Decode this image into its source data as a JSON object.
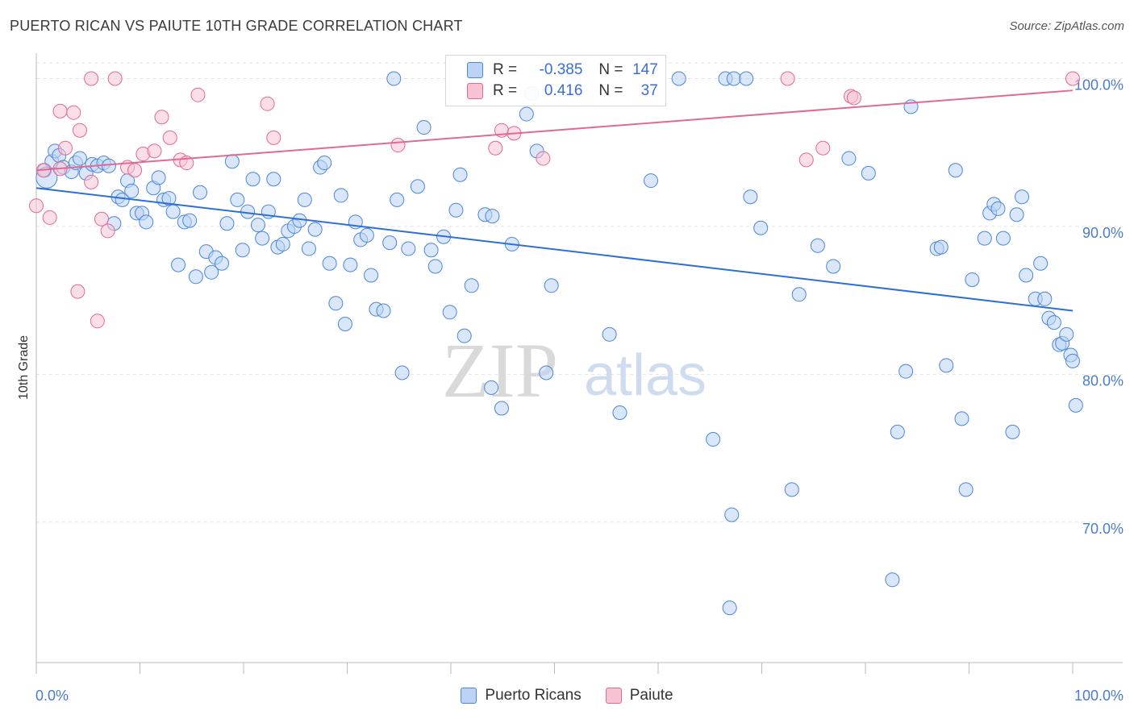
{
  "title": "PUERTO RICAN VS PAIUTE 10TH GRADE CORRELATION CHART",
  "source": "Source: ZipAtlas.com",
  "watermark": {
    "zip": "ZIP",
    "atlas": "atlas"
  },
  "legend_box": {
    "rows": [
      {
        "r_label": "R =",
        "r_value": "-0.385",
        "n_label": "N =",
        "n_value": "147"
      },
      {
        "r_label": "R =",
        "r_value": "0.416",
        "n_label": "N =",
        "n_value": "37"
      }
    ]
  },
  "bottom_legend": [
    "Puerto Ricans",
    "Paiute"
  ],
  "colors": {
    "blue": "#4a86d8",
    "blue_fill": "#bcd3f5",
    "pink": "#e06a94",
    "pink_fill": "#f7c3d3",
    "axis_text": "#4a7cc9"
  },
  "chart_data": {
    "type": "scatter",
    "title": "PUERTO RICAN VS PAIUTE 10TH GRADE CORRELATION CHART",
    "xlabel": "",
    "ylabel": "10th Grade",
    "xlim": [
      0,
      100
    ],
    "ylim": [
      60.5,
      101.5
    ],
    "x_tick_labels": [
      "0.0%",
      "100.0%"
    ],
    "y_ticks": [
      100,
      90,
      80,
      70
    ],
    "y_tick_labels": [
      "100.0%",
      "90.0%",
      "80.0%",
      "70.0%"
    ],
    "grid": true,
    "legend_position": "top-center",
    "series": [
      {
        "name": "Puerto Ricans",
        "r": -0.385,
        "n": 147,
        "trend": {
          "x": [
            0,
            100
          ],
          "y": [
            92.6,
            84.3
          ]
        },
        "points": [
          {
            "x": 0.8,
            "y": 93.8
          },
          {
            "x": 1.0,
            "y": 93.3
          },
          {
            "x": 1.5,
            "y": 94.4
          },
          {
            "x": 1.8,
            "y": 95.1
          },
          {
            "x": 2.2,
            "y": 94.8
          },
          {
            "x": 2.6,
            "y": 94.0
          },
          {
            "x": 3.4,
            "y": 93.7
          },
          {
            "x": 3.8,
            "y": 94.3
          },
          {
            "x": 4.2,
            "y": 94.6
          },
          {
            "x": 4.8,
            "y": 93.6
          },
          {
            "x": 5.4,
            "y": 94.2
          },
          {
            "x": 5.9,
            "y": 94.1
          },
          {
            "x": 6.5,
            "y": 94.3
          },
          {
            "x": 7.0,
            "y": 94.1
          },
          {
            "x": 7.5,
            "y": 90.2
          },
          {
            "x": 7.9,
            "y": 92.0
          },
          {
            "x": 8.3,
            "y": 91.8
          },
          {
            "x": 8.8,
            "y": 93.1
          },
          {
            "x": 9.2,
            "y": 92.4
          },
          {
            "x": 9.7,
            "y": 90.9
          },
          {
            "x": 10.2,
            "y": 90.9
          },
          {
            "x": 10.6,
            "y": 90.3
          },
          {
            "x": 11.3,
            "y": 92.6
          },
          {
            "x": 11.8,
            "y": 93.3
          },
          {
            "x": 12.3,
            "y": 91.8
          },
          {
            "x": 12.8,
            "y": 91.9
          },
          {
            "x": 13.2,
            "y": 91.0
          },
          {
            "x": 13.7,
            "y": 87.4
          },
          {
            "x": 14.3,
            "y": 90.3
          },
          {
            "x": 14.8,
            "y": 90.4
          },
          {
            "x": 15.4,
            "y": 86.6
          },
          {
            "x": 15.8,
            "y": 92.3
          },
          {
            "x": 16.4,
            "y": 88.3
          },
          {
            "x": 16.9,
            "y": 86.9
          },
          {
            "x": 17.3,
            "y": 87.9
          },
          {
            "x": 17.9,
            "y": 87.5
          },
          {
            "x": 18.4,
            "y": 90.2
          },
          {
            "x": 18.9,
            "y": 94.4
          },
          {
            "x": 19.4,
            "y": 91.8
          },
          {
            "x": 19.9,
            "y": 88.4
          },
          {
            "x": 20.4,
            "y": 91.0
          },
          {
            "x": 20.9,
            "y": 93.2
          },
          {
            "x": 21.4,
            "y": 90.1
          },
          {
            "x": 21.8,
            "y": 89.2
          },
          {
            "x": 22.4,
            "y": 91.0
          },
          {
            "x": 22.9,
            "y": 93.2
          },
          {
            "x": 23.3,
            "y": 88.6
          },
          {
            "x": 23.8,
            "y": 88.8
          },
          {
            "x": 24.3,
            "y": 89.7
          },
          {
            "x": 24.9,
            "y": 90.0
          },
          {
            "x": 25.4,
            "y": 90.4
          },
          {
            "x": 25.9,
            "y": 91.8
          },
          {
            "x": 26.3,
            "y": 88.5
          },
          {
            "x": 26.9,
            "y": 89.8
          },
          {
            "x": 27.4,
            "y": 94.0
          },
          {
            "x": 27.8,
            "y": 94.3
          },
          {
            "x": 28.3,
            "y": 87.5
          },
          {
            "x": 28.9,
            "y": 84.8
          },
          {
            "x": 29.4,
            "y": 92.1
          },
          {
            "x": 29.8,
            "y": 83.4
          },
          {
            "x": 30.3,
            "y": 87.4
          },
          {
            "x": 30.8,
            "y": 90.3
          },
          {
            "x": 31.3,
            "y": 89.1
          },
          {
            "x": 31.9,
            "y": 89.4
          },
          {
            "x": 32.3,
            "y": 86.7
          },
          {
            "x": 32.8,
            "y": 84.4
          },
          {
            "x": 33.5,
            "y": 84.3
          },
          {
            "x": 34.1,
            "y": 88.9
          },
          {
            "x": 34.5,
            "y": 100.0
          },
          {
            "x": 34.8,
            "y": 91.8
          },
          {
            "x": 35.3,
            "y": 80.1
          },
          {
            "x": 35.9,
            "y": 88.5
          },
          {
            "x": 36.8,
            "y": 92.7
          },
          {
            "x": 37.4,
            "y": 96.7
          },
          {
            "x": 38.1,
            "y": 88.4
          },
          {
            "x": 38.5,
            "y": 87.3
          },
          {
            "x": 39.3,
            "y": 89.3
          },
          {
            "x": 39.9,
            "y": 84.2
          },
          {
            "x": 40.5,
            "y": 91.1
          },
          {
            "x": 40.9,
            "y": 93.5
          },
          {
            "x": 41.3,
            "y": 82.6
          },
          {
            "x": 42.0,
            "y": 86.0
          },
          {
            "x": 43.3,
            "y": 90.8
          },
          {
            "x": 43.9,
            "y": 79.1
          },
          {
            "x": 44.0,
            "y": 90.7
          },
          {
            "x": 44.9,
            "y": 77.7
          },
          {
            "x": 45.9,
            "y": 88.8
          },
          {
            "x": 47.3,
            "y": 97.6
          },
          {
            "x": 47.8,
            "y": 99.0
          },
          {
            "x": 48.3,
            "y": 95.1
          },
          {
            "x": 49.2,
            "y": 80.1
          },
          {
            "x": 49.7,
            "y": 86.0
          },
          {
            "x": 51.8,
            "y": 100.0
          },
          {
            "x": 55.3,
            "y": 82.7
          },
          {
            "x": 56.3,
            "y": 77.4
          },
          {
            "x": 59.3,
            "y": 93.1
          },
          {
            "x": 62.0,
            "y": 100.0
          },
          {
            "x": 65.3,
            "y": 75.6
          },
          {
            "x": 66.5,
            "y": 100.0
          },
          {
            "x": 66.9,
            "y": 64.2
          },
          {
            "x": 67.1,
            "y": 70.5
          },
          {
            "x": 67.3,
            "y": 100.0
          },
          {
            "x": 68.5,
            "y": 100.0
          },
          {
            "x": 68.9,
            "y": 92.0
          },
          {
            "x": 69.9,
            "y": 89.9
          },
          {
            "x": 72.9,
            "y": 72.2
          },
          {
            "x": 73.6,
            "y": 85.4
          },
          {
            "x": 75.4,
            "y": 88.7
          },
          {
            "x": 76.9,
            "y": 87.3
          },
          {
            "x": 78.4,
            "y": 94.6
          },
          {
            "x": 80.3,
            "y": 93.6
          },
          {
            "x": 82.6,
            "y": 66.1
          },
          {
            "x": 83.1,
            "y": 76.1
          },
          {
            "x": 83.9,
            "y": 80.2
          },
          {
            "x": 84.4,
            "y": 98.1
          },
          {
            "x": 86.9,
            "y": 88.5
          },
          {
            "x": 87.3,
            "y": 88.6
          },
          {
            "x": 87.8,
            "y": 80.6
          },
          {
            "x": 88.7,
            "y": 93.8
          },
          {
            "x": 89.3,
            "y": 77.0
          },
          {
            "x": 89.7,
            "y": 72.2
          },
          {
            "x": 90.3,
            "y": 86.4
          },
          {
            "x": 91.5,
            "y": 89.2
          },
          {
            "x": 92.0,
            "y": 90.9
          },
          {
            "x": 92.4,
            "y": 91.5
          },
          {
            "x": 92.8,
            "y": 91.2
          },
          {
            "x": 93.3,
            "y": 89.2
          },
          {
            "x": 94.2,
            "y": 76.1
          },
          {
            "x": 94.6,
            "y": 90.8
          },
          {
            "x": 95.1,
            "y": 92.0
          },
          {
            "x": 95.5,
            "y": 86.7
          },
          {
            "x": 96.4,
            "y": 85.1
          },
          {
            "x": 96.9,
            "y": 87.5
          },
          {
            "x": 97.3,
            "y": 85.1
          },
          {
            "x": 97.7,
            "y": 83.8
          },
          {
            "x": 98.2,
            "y": 83.5
          },
          {
            "x": 98.7,
            "y": 82.0
          },
          {
            "x": 99.0,
            "y": 82.1
          },
          {
            "x": 99.4,
            "y": 82.7
          },
          {
            "x": 99.8,
            "y": 81.3
          },
          {
            "x": 100.0,
            "y": 80.9
          },
          {
            "x": 100.3,
            "y": 77.9
          }
        ]
      },
      {
        "name": "Paiute",
        "r": 0.416,
        "n": 37,
        "trend": {
          "x": [
            0,
            100
          ],
          "y": [
            93.8,
            99.2
          ]
        },
        "points": [
          {
            "x": 0.0,
            "y": 91.4
          },
          {
            "x": 0.7,
            "y": 93.8
          },
          {
            "x": 1.3,
            "y": 90.6
          },
          {
            "x": 2.3,
            "y": 93.9
          },
          {
            "x": 2.3,
            "y": 97.8
          },
          {
            "x": 2.8,
            "y": 95.3
          },
          {
            "x": 3.6,
            "y": 97.7
          },
          {
            "x": 4.0,
            "y": 85.6
          },
          {
            "x": 4.2,
            "y": 96.5
          },
          {
            "x": 5.3,
            "y": 93.0
          },
          {
            "x": 5.3,
            "y": 100.0
          },
          {
            "x": 5.9,
            "y": 83.6
          },
          {
            "x": 6.3,
            "y": 90.5
          },
          {
            "x": 6.9,
            "y": 89.7
          },
          {
            "x": 7.6,
            "y": 100.0
          },
          {
            "x": 8.8,
            "y": 94.0
          },
          {
            "x": 9.5,
            "y": 93.8
          },
          {
            "x": 10.3,
            "y": 94.9
          },
          {
            "x": 11.4,
            "y": 95.1
          },
          {
            "x": 12.1,
            "y": 97.4
          },
          {
            "x": 12.9,
            "y": 96.0
          },
          {
            "x": 13.9,
            "y": 94.5
          },
          {
            "x": 14.5,
            "y": 94.3
          },
          {
            "x": 15.6,
            "y": 98.9
          },
          {
            "x": 22.3,
            "y": 98.3
          },
          {
            "x": 22.9,
            "y": 96.0
          },
          {
            "x": 34.9,
            "y": 95.5
          },
          {
            "x": 44.3,
            "y": 95.3
          },
          {
            "x": 44.9,
            "y": 96.5
          },
          {
            "x": 46.1,
            "y": 96.3
          },
          {
            "x": 48.9,
            "y": 94.6
          },
          {
            "x": 72.5,
            "y": 100.0
          },
          {
            "x": 74.3,
            "y": 94.5
          },
          {
            "x": 75.9,
            "y": 95.3
          },
          {
            "x": 78.6,
            "y": 98.8
          },
          {
            "x": 78.9,
            "y": 98.7
          },
          {
            "x": 100.0,
            "y": 100.0
          }
        ]
      }
    ]
  }
}
